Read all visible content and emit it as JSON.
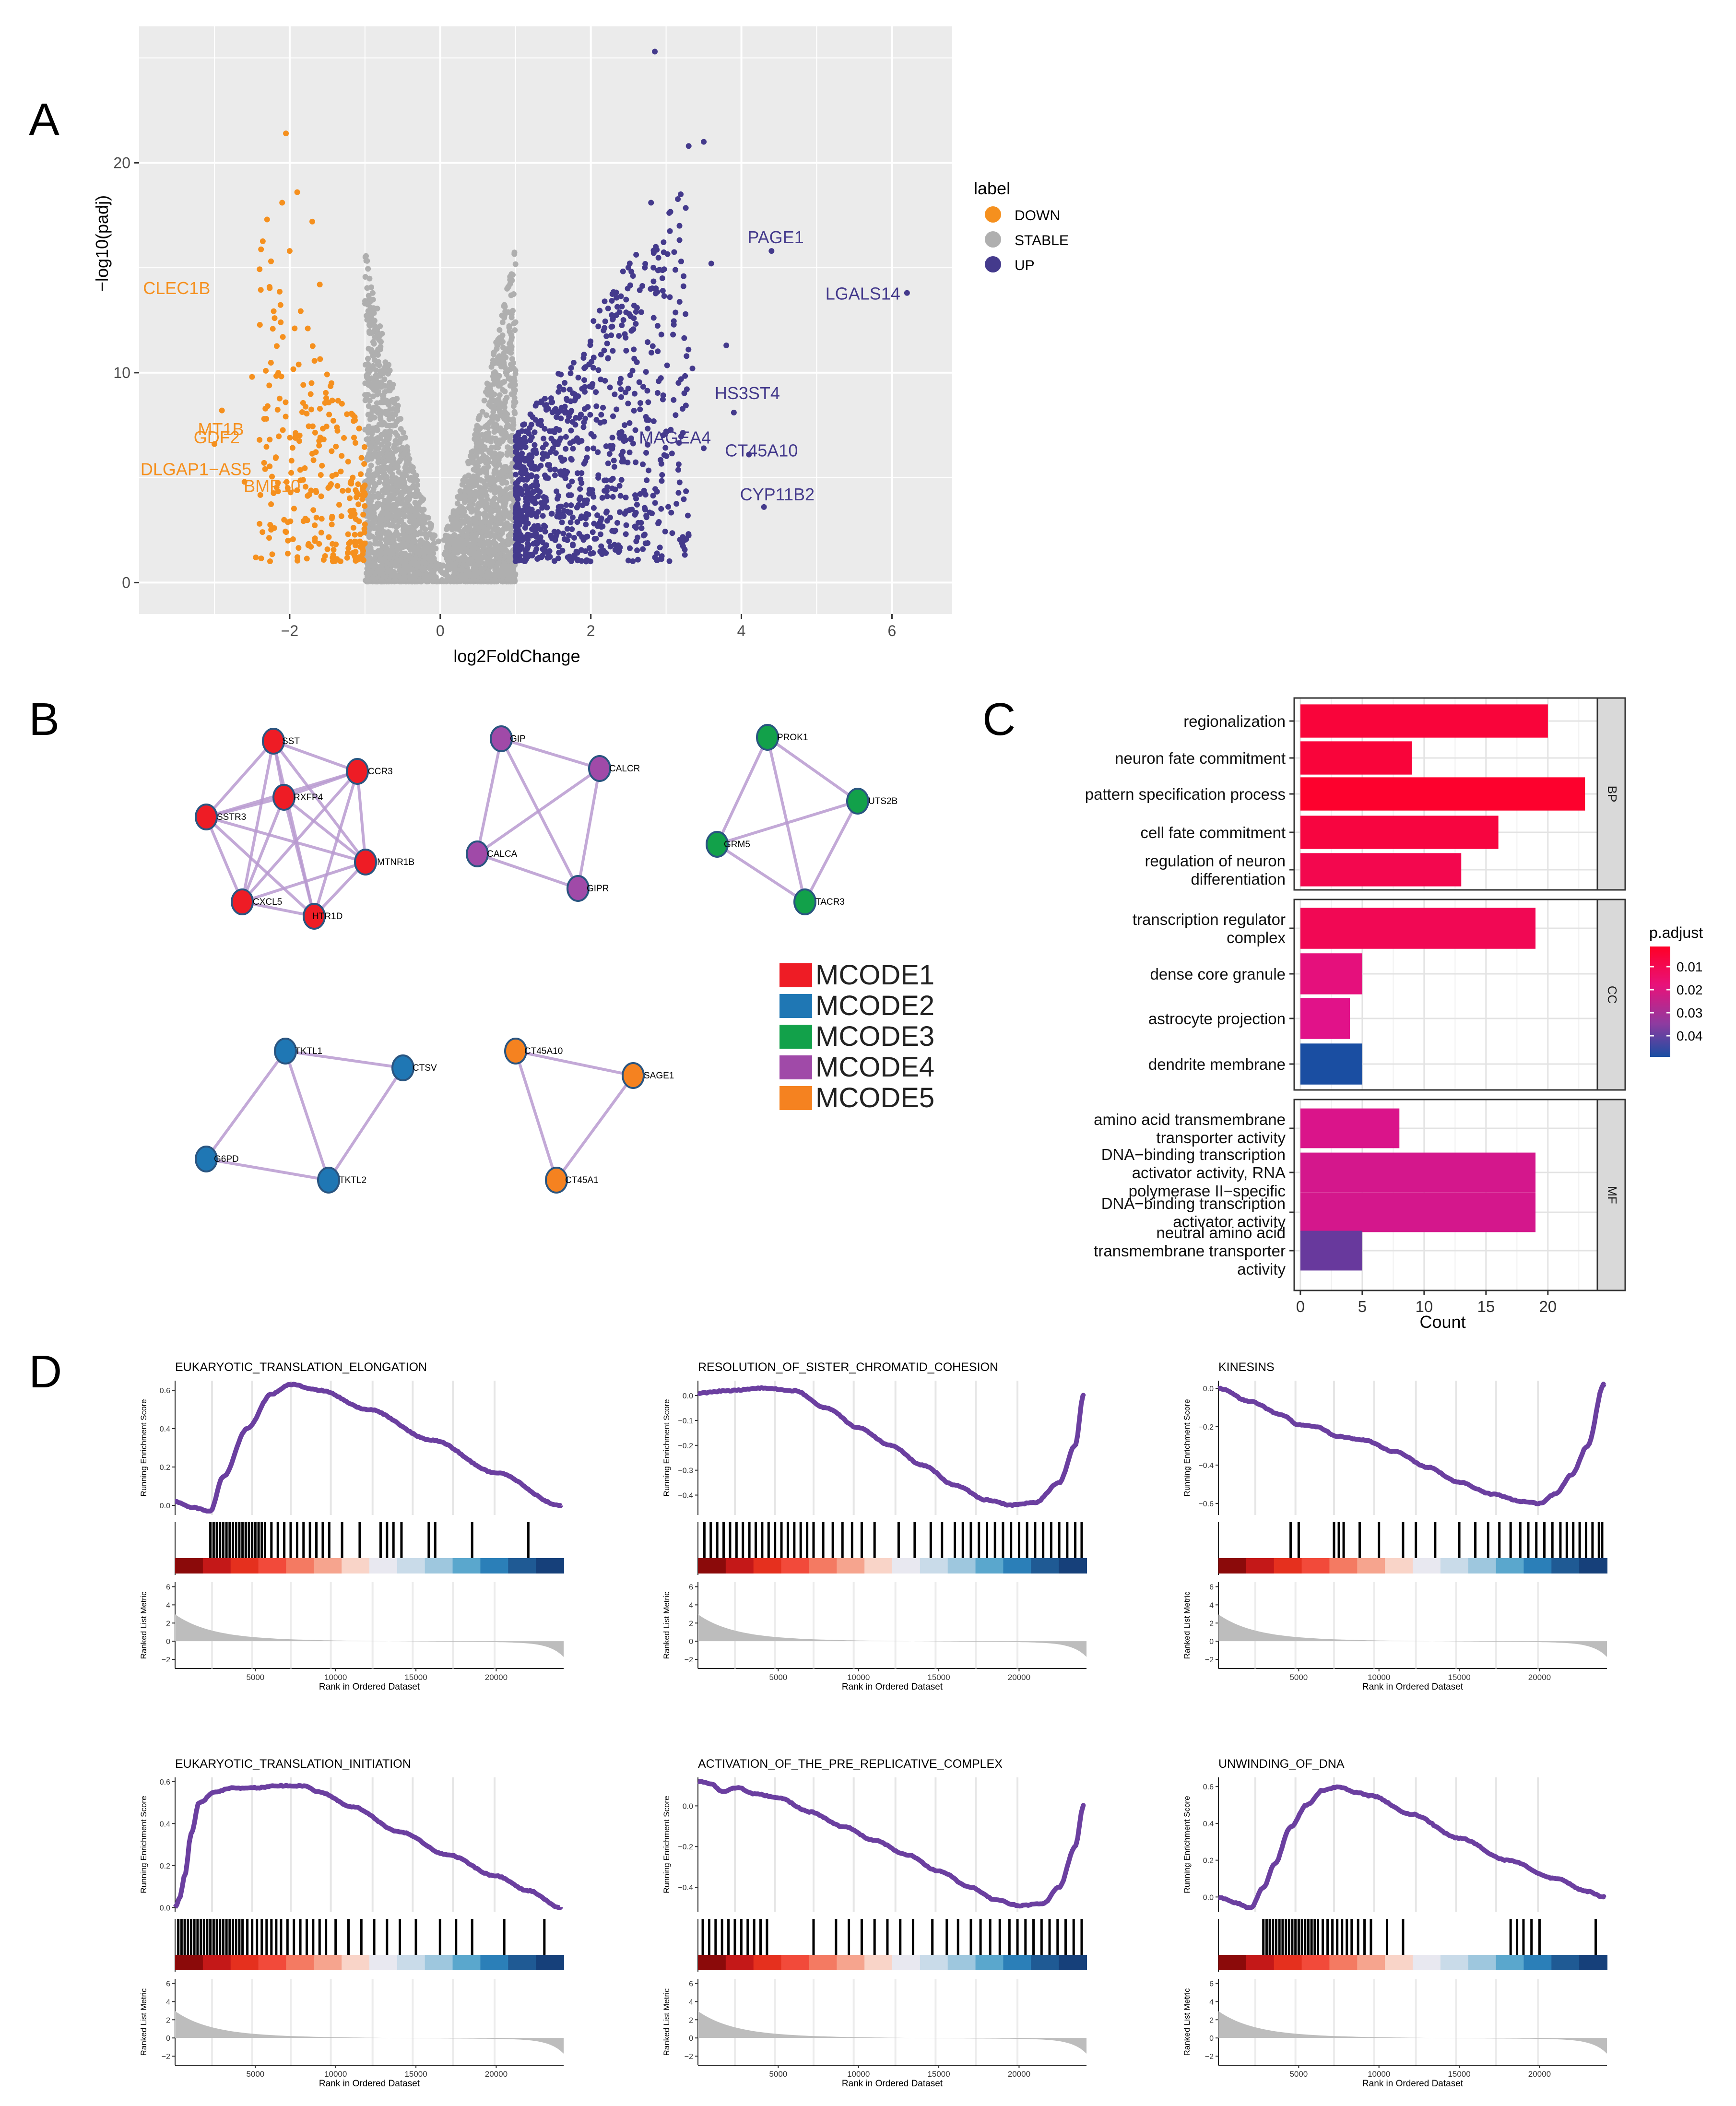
{
  "panels": {
    "A": "A",
    "B": "B",
    "C": "C",
    "D": "D"
  },
  "colors": {
    "down": "#F5901E",
    "stable": "#AFAFAF",
    "up": "#443A8C",
    "plot_bg": "#EBEBEB",
    "grid": "#FFFFFF",
    "mcode1": "#EE1C25",
    "mcode2": "#1F77B4",
    "mcode3": "#12A14A",
    "mcode4": "#A04AA8",
    "mcode5": "#F58220",
    "edge": "#B99AD0",
    "gsea_line": "#6B3FA0",
    "metric": "#BDBDBD"
  },
  "chart_data": [
    {
      "type": "scatter",
      "panel": "A",
      "xlabel": "log2FoldChange",
      "ylabel": "−log10(padj)",
      "xlim": [
        -4.0,
        6.8
      ],
      "ylim": [
        -1.5,
        26.5
      ],
      "xticks": [
        -2,
        0,
        2,
        4,
        6
      ],
      "xtick_labels": [
        "−2",
        "0",
        "2",
        "4",
        "6"
      ],
      "yticks": [
        0,
        10,
        20
      ],
      "ytick_labels": [
        "0",
        "10",
        "20"
      ],
      "legend": {
        "title": "label",
        "position": "right",
        "entries": [
          "DOWN",
          "STABLE",
          "UP"
        ]
      },
      "grid": true,
      "labeled_points": [
        {
          "label": "CLEC1B",
          "x": -2.8,
          "y": 15.0,
          "group": "DOWN"
        },
        {
          "label": "MT1B",
          "x": -3.5,
          "y": 7.3,
          "group": "DOWN"
        },
        {
          "label": "GDF2",
          "x": -2.6,
          "y": 6.5,
          "group": "DOWN"
        },
        {
          "label": "DLGAP1−AS5",
          "x": -2.7,
          "y": 5.8,
          "group": "DOWN"
        },
        {
          "label": "BMP10",
          "x": -2.75,
          "y": 5.0,
          "group": "DOWN"
        },
        {
          "label": "PAGE1",
          "x": 4.4,
          "y": 15.8,
          "group": "UP"
        },
        {
          "label": "LGALS14",
          "x": 6.2,
          "y": 13.8,
          "group": "UP"
        },
        {
          "label": "HS3ST4",
          "x": 3.9,
          "y": 8.1,
          "group": "UP"
        },
        {
          "label": "MAGEA4",
          "x": 3.5,
          "y": 6.4,
          "group": "UP"
        },
        {
          "label": "CT45A10",
          "x": 4.1,
          "y": 6.1,
          "group": "UP"
        },
        {
          "label": "CYP11B2",
          "x": 4.3,
          "y": 3.6,
          "group": "UP"
        }
      ],
      "top_points": [
        {
          "x": -2.1,
          "y": 21.4,
          "group": "DOWN"
        },
        {
          "x": 2.85,
          "y": 25.3,
          "group": "UP"
        },
        {
          "x": 3.5,
          "y": 21.0,
          "group": "UP"
        },
        {
          "x": 3.3,
          "y": 20.8,
          "group": "UP"
        },
        {
          "x": 2.8,
          "y": 18.1,
          "group": "UP"
        }
      ]
    },
    {
      "type": "bar",
      "panel": "C",
      "orientation": "horizontal",
      "xlabel": "Count",
      "xlim": [
        -0.5,
        24
      ],
      "xticks": [
        0,
        5,
        10,
        15,
        20
      ],
      "facets": [
        {
          "name": "BP",
          "categories": [
            "regionalization",
            "neuron fate commitment",
            "pattern specification process",
            "cell fate commitment",
            "regulation of neuron differentiation"
          ],
          "values": [
            20,
            9,
            23,
            16,
            13
          ],
          "padj": [
            0.008,
            0.008,
            0.006,
            0.009,
            0.011
          ]
        },
        {
          "name": "CC",
          "categories": [
            "transcription regulator complex",
            "dense core granule",
            "astrocyte projection",
            "dendrite membrane"
          ],
          "values": [
            19,
            5,
            4,
            5
          ],
          "padj": [
            0.012,
            0.018,
            0.02,
            0.05
          ]
        },
        {
          "name": "MF",
          "categories": [
            "amino acid transmembrane transporter activity",
            "DNA−binding transcription activator activity, RNA polymerase II−specific",
            "DNA−binding transcription activator activity",
            "neutral amino acid transmembrane transporter activity"
          ],
          "values": [
            8,
            19,
            19,
            5
          ],
          "padj": [
            0.021,
            0.022,
            0.022,
            0.038
          ]
        }
      ],
      "display_labels": {
        "BP": [
          [
            "regionalization"
          ],
          [
            "neuron fate commitment"
          ],
          [
            "pattern specification process"
          ],
          [
            "cell fate commitment"
          ],
          [
            "regulation of neuron",
            "differentiation"
          ]
        ],
        "CC": [
          [
            "transcription regulator",
            "complex"
          ],
          [
            "dense core granule"
          ],
          [
            "astrocyte projection"
          ],
          [
            "dendrite membrane"
          ]
        ],
        "MF": [
          [
            "amino acid transmembrane",
            "transporter activity"
          ],
          [
            "DNA−binding transcription",
            "activator activity, RNA",
            "polymerase II−specific"
          ],
          [
            "DNA−binding transcription",
            "activator activity"
          ],
          [
            "neutral amino acid",
            "transmembrane transporter",
            "activity"
          ]
        ]
      },
      "legend": {
        "title": "p.adjust",
        "position": "right",
        "ticks": [
          "0.01",
          "0.02",
          "0.03",
          "0.04"
        ]
      }
    },
    {
      "type": "line",
      "panel": "D",
      "layout": "2x3 GSEA",
      "xlabel": "Rank in Ordered Dataset",
      "ylabel_top": "Running Enrichment Score",
      "ylabel_bottom": "Ranked List Metric",
      "xticks": [
        5000,
        10000,
        15000,
        20000
      ],
      "metric_yticks": [
        6,
        4,
        2,
        0,
        -2
      ],
      "plots": [
        {
          "title": "EUKARYOTIC_TRANSLATION_ELONGATION",
          "ylim": [
            -0.05,
            0.65
          ],
          "yticks": [
            0.0,
            0.2,
            0.4,
            0.6
          ],
          "ytick_labels": [
            "0.0",
            "0.2",
            "0.4",
            "0.6"
          ],
          "curve_x": [
            0,
            1000,
            2200,
            3000,
            4500,
            6000,
            7200,
            9000,
            12000,
            16000,
            20000,
            24000
          ],
          "curve_y": [
            0.02,
            -0.01,
            -0.03,
            0.15,
            0.4,
            0.58,
            0.63,
            0.6,
            0.5,
            0.34,
            0.17,
            0.0
          ],
          "hits": [
            2200,
            2400,
            2600,
            2800,
            3000,
            3200,
            3400,
            3600,
            3800,
            4000,
            4200,
            4400,
            4600,
            4800,
            5000,
            5200,
            5400,
            5600,
            6000,
            6400,
            6800,
            7200,
            7600,
            8000,
            8400,
            8800,
            9200,
            9600,
            10400,
            11500,
            12800,
            13200,
            13600,
            14100,
            15800,
            16200,
            18500,
            22000
          ]
        },
        {
          "title": "RESOLUTION_OF_SISTER_CHROMATID_COHESION",
          "ylim": [
            -0.48,
            0.06
          ],
          "yticks": [
            0.0,
            -0.1,
            -0.2,
            -0.3,
            -0.4
          ],
          "ytick_labels": [
            "0.0",
            "−0.1",
            "−0.2",
            "−0.3",
            "−0.4"
          ],
          "curve_x": [
            0,
            2000,
            4000,
            6000,
            8000,
            10000,
            12000,
            14000,
            16000,
            18000,
            19500,
            21000,
            22500,
            23500,
            24000
          ],
          "curve_y": [
            0.01,
            0.02,
            0.03,
            0.02,
            -0.05,
            -0.13,
            -0.2,
            -0.28,
            -0.36,
            -0.42,
            -0.44,
            -0.43,
            -0.35,
            -0.2,
            0.0
          ],
          "hits": [
            400,
            800,
            1200,
            1600,
            2000,
            2400,
            2800,
            3200,
            3600,
            4000,
            4400,
            4800,
            5200,
            5600,
            6000,
            6400,
            6800,
            7200,
            7800,
            8400,
            9000,
            9600,
            10200,
            11000,
            12500,
            13500,
            14500,
            15200,
            16000,
            16500,
            17000,
            17500,
            18000,
            18500,
            19000,
            19500,
            20000,
            20500,
            21000,
            21500,
            22000,
            22500,
            23000,
            23500,
            23900
          ]
        },
        {
          "title": "KINESINS",
          "ylim": [
            -0.66,
            0.04
          ],
          "yticks": [
            0.0,
            -0.2,
            -0.4,
            -0.6
          ],
          "ytick_labels": [
            "0.0",
            "−0.2",
            "−0.4",
            "−0.6"
          ],
          "curve_x": [
            0,
            2000,
            4000,
            5000,
            6000,
            7500,
            9000,
            11000,
            13000,
            15000,
            17000,
            19000,
            20000,
            21000,
            22000,
            23000,
            24000
          ],
          "curve_y": [
            0.0,
            -0.07,
            -0.14,
            -0.19,
            -0.2,
            -0.25,
            -0.27,
            -0.33,
            -0.41,
            -0.49,
            -0.55,
            -0.59,
            -0.6,
            -0.55,
            -0.45,
            -0.3,
            0.02
          ],
          "hits": [
            4500,
            5000,
            7200,
            7500,
            7800,
            8800,
            10000,
            11500,
            12300,
            13500,
            15000,
            16000,
            16800,
            17500,
            18200,
            18800,
            19300,
            19800,
            20300,
            20800,
            21300,
            21700,
            22100,
            22500,
            22900,
            23300,
            23700,
            23900
          ]
        },
        {
          "title": "EUKARYOTIC_TRANSLATION_INITIATION",
          "ylim": [
            -0.02,
            0.62
          ],
          "yticks": [
            0.0,
            0.2,
            0.4,
            0.6
          ],
          "ytick_labels": [
            "0.0",
            "0.2",
            "0.4",
            "0.6"
          ],
          "curve_x": [
            0,
            300,
            600,
            1000,
            1500,
            2500,
            3500,
            5000,
            6500,
            8000,
            9000,
            11000,
            14000,
            17000,
            20000,
            22000,
            24000
          ],
          "curve_y": [
            0.0,
            0.05,
            0.15,
            0.35,
            0.5,
            0.55,
            0.57,
            0.57,
            0.58,
            0.58,
            0.55,
            0.48,
            0.36,
            0.25,
            0.15,
            0.08,
            0.0
          ],
          "hits": [
            200,
            400,
            600,
            800,
            1000,
            1200,
            1400,
            1600,
            1800,
            2000,
            2200,
            2400,
            2600,
            2800,
            3000,
            3200,
            3400,
            3600,
            3800,
            4000,
            4200,
            4500,
            4800,
            5100,
            5400,
            5700,
            6000,
            6300,
            6600,
            7000,
            7400,
            7800,
            8200,
            8600,
            9000,
            9400,
            10000,
            10800,
            11600,
            12400,
            13200,
            14000,
            15000,
            16500,
            17500,
            18500,
            20500,
            23000
          ]
        },
        {
          "title": "ACTIVATION_OF_THE_PRE_REPLICATIVE_COMPLEX",
          "ylim": [
            -0.52,
            0.14
          ],
          "yticks": [
            0.0,
            -0.2,
            -0.4
          ],
          "ytick_labels": [
            "0.0",
            "−0.2",
            "−0.4"
          ],
          "curve_x": [
            0,
            800,
            1500,
            2500,
            3500,
            5000,
            7000,
            9000,
            11000,
            13000,
            15000,
            17000,
            18500,
            20000,
            21500,
            22500,
            23500,
            24000
          ],
          "curve_y": [
            0.12,
            0.11,
            0.07,
            0.09,
            0.06,
            0.04,
            -0.03,
            -0.1,
            -0.17,
            -0.24,
            -0.32,
            -0.4,
            -0.46,
            -0.49,
            -0.48,
            -0.4,
            -0.2,
            0.0
          ],
          "hits": [
            300,
            700,
            1100,
            1500,
            1900,
            2300,
            2700,
            3100,
            3500,
            3900,
            4300,
            7200,
            8600,
            9400,
            10200,
            11000,
            11800,
            12600,
            13400,
            14600,
            15500,
            16200,
            17000,
            17600,
            18200,
            18800,
            19400,
            19900,
            20400,
            20900,
            21400,
            21900,
            22400,
            22900,
            23400,
            23900
          ]
        },
        {
          "title": "UNWINDING_OF_DNA",
          "ylim": [
            -0.08,
            0.65
          ],
          "yticks": [
            0.0,
            0.2,
            0.4,
            0.6
          ],
          "ytick_labels": [
            "0.0",
            "0.2",
            "0.4",
            "0.6"
          ],
          "curve_x": [
            0,
            1000,
            2000,
            2800,
            3500,
            4500,
            5500,
            6500,
            7500,
            8500,
            9500,
            12000,
            15000,
            18000,
            21000,
            23000,
            24000
          ],
          "curve_y": [
            0.0,
            -0.03,
            -0.06,
            0.05,
            0.18,
            0.38,
            0.5,
            0.58,
            0.6,
            0.57,
            0.55,
            0.45,
            0.32,
            0.2,
            0.1,
            0.03,
            0.0
          ],
          "hits": [
            2800,
            3000,
            3200,
            3400,
            3600,
            3800,
            4000,
            4200,
            4400,
            4600,
            4800,
            5000,
            5200,
            5400,
            5600,
            5800,
            6000,
            6200,
            6500,
            6800,
            7100,
            7400,
            7700,
            8000,
            8300,
            8700,
            9100,
            9500,
            10500,
            11500,
            18200,
            18600,
            19000,
            19500,
            20000,
            23500
          ]
        }
      ]
    }
  ],
  "networkB": {
    "legend": [
      "MCODE1",
      "MCODE2",
      "MCODE3",
      "MCODE4",
      "MCODE5"
    ],
    "clusters": [
      {
        "color_key": "mcode1",
        "nodes": [
          "SST",
          "CCR3",
          "RXFP4",
          "SSTR3",
          "MTNR1B",
          "CXCL5",
          "HTR1D"
        ],
        "edges": "complete"
      },
      {
        "color_key": "mcode4",
        "nodes": [
          "GIP",
          "CALCR",
          "CALCA",
          "GIPR"
        ],
        "edges": "complete"
      },
      {
        "color_key": "mcode3",
        "nodes": [
          "PROK1",
          "UTS2B",
          "GRM5",
          "TACR3"
        ],
        "edges": "complete"
      },
      {
        "color_key": "mcode2",
        "nodes": [
          "TKTL1",
          "CTSV",
          "G6PD",
          "TKTL2"
        ],
        "edges": "cycle"
      },
      {
        "color_key": "mcode5",
        "nodes": [
          "CT45A10",
          "SAGE1",
          "CT45A1"
        ],
        "edges": "complete"
      }
    ]
  }
}
